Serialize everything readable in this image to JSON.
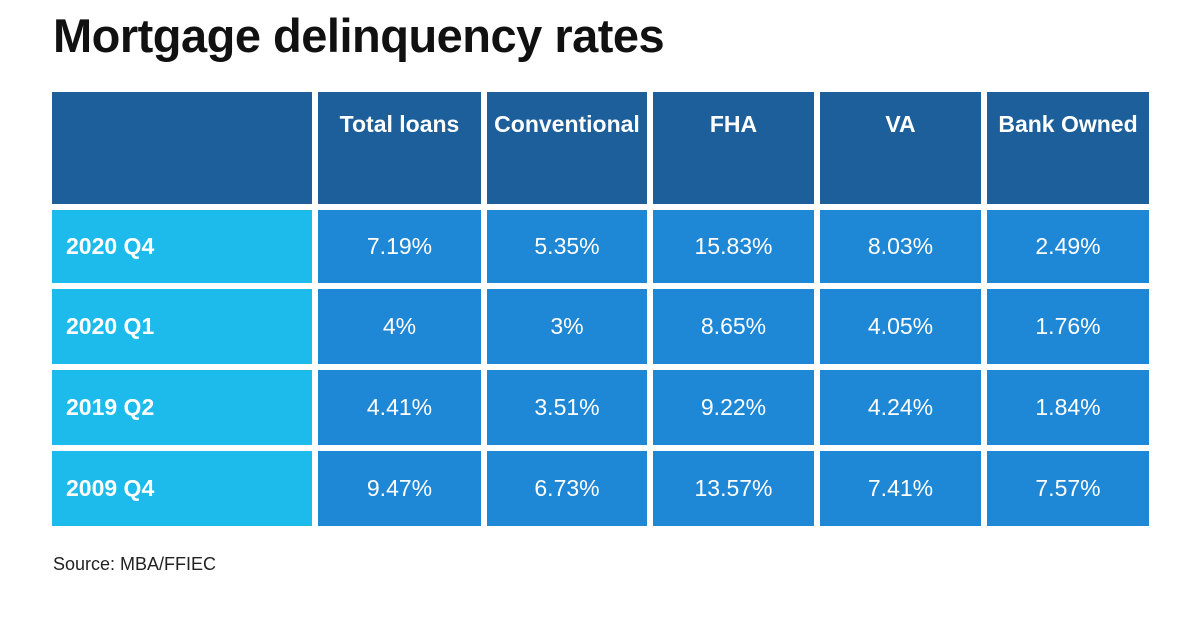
{
  "title": "Mortgage delinquency rates",
  "source": "Source: MBA/FFIEC",
  "colors": {
    "header_bg": "#1c5f9a",
    "row_label_bg": "#1dbaec",
    "cell_bg": "#1e87d6",
    "text": "#ffffff"
  },
  "chart_data": {
    "type": "table",
    "title": "Mortgage delinquency rates",
    "columns": [
      "Total loans",
      "Conventional",
      "FHA",
      "VA",
      "Bank Owned"
    ],
    "rows": [
      {
        "label": "2020 Q4",
        "values": [
          "7.19%",
          "5.35%",
          "15.83%",
          "8.03%",
          "2.49%"
        ]
      },
      {
        "label": "2020 Q1",
        "values": [
          "4%",
          "3%",
          "8.65%",
          "4.05%",
          "1.76%"
        ]
      },
      {
        "label": "2019 Q2",
        "values": [
          "4.41%",
          "3.51%",
          "9.22%",
          "4.24%",
          "1.84%"
        ]
      },
      {
        "label": "2009 Q4",
        "values": [
          "9.47%",
          "6.73%",
          "13.57%",
          "7.41%",
          "7.57%"
        ]
      }
    ]
  }
}
